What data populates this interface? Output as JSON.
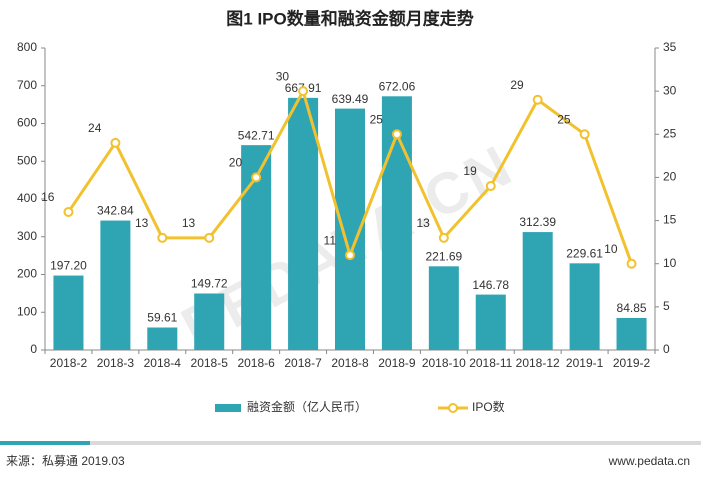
{
  "chart_data": {
    "type": "bar",
    "title": "图1 IPO数量和融资金额月度走势",
    "categories": [
      "2018-2",
      "2018-3",
      "2018-4",
      "2018-5",
      "2018-6",
      "2018-7",
      "2018-8",
      "2018-9",
      "2018-10",
      "2018-11",
      "2018-12",
      "2019-1",
      "2019-2"
    ],
    "series": [
      {
        "name": "融资金额（亿人民币）",
        "type": "bar",
        "color": "#2fa5b4",
        "values": [
          197.2,
          342.84,
          59.61,
          149.72,
          542.71,
          667.91,
          639.49,
          672.06,
          221.69,
          146.78,
          312.39,
          229.61,
          84.85
        ],
        "value_labels": [
          "197.20",
          "342.84",
          "59.61",
          "149.72",
          "542.71",
          "667.91",
          "639.49",
          "672.06",
          "221.69",
          "146.78",
          "312.39",
          "229.61",
          "84.85"
        ]
      },
      {
        "name": "IPO数",
        "type": "line",
        "axis": "y2",
        "color": "#f2c12e",
        "values": [
          16,
          24,
          13,
          13,
          20,
          30,
          11,
          25,
          13,
          19,
          29,
          25,
          10
        ]
      }
    ],
    "ylim": [
      0,
      800
    ],
    "yticks": [
      0,
      100,
      200,
      300,
      400,
      500,
      600,
      700,
      800
    ],
    "y2lim": [
      0,
      35
    ],
    "y2ticks": [
      0,
      5,
      10,
      15,
      20,
      25,
      30,
      35
    ],
    "watermark": "PEDATA.CN",
    "source": "来源：私募通 2019.03",
    "website": "www.pedata.cn"
  }
}
